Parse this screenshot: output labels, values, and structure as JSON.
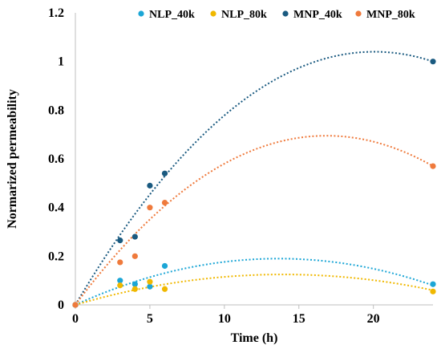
{
  "chart_data": {
    "type": "scatter",
    "xlabel": "Time (h)",
    "ylabel": "Normarized permeability",
    "xlim": [
      0,
      24
    ],
    "ylim": [
      0,
      1.2
    ],
    "xticks": [
      0,
      5,
      10,
      15,
      20
    ],
    "yticks": [
      0,
      0.2,
      0.4,
      0.6,
      0.8,
      1,
      1.2
    ],
    "xtick_labels": [
      "0",
      "5",
      "10",
      "15",
      "20"
    ],
    "ytick_labels": [
      "0",
      "0.2",
      "0.4",
      "0.6",
      "0.8",
      "1",
      "1.2"
    ],
    "grid": false,
    "legend_position": "top",
    "trendline": "polynomial order 2 (dotted)",
    "series": [
      {
        "name": "NLP_40k",
        "color": "#1ca6d6",
        "points": [
          [
            0,
            0
          ],
          [
            3,
            0.1
          ],
          [
            4,
            0.085
          ],
          [
            5,
            0.075
          ],
          [
            6,
            0.16
          ],
          [
            24,
            0.085
          ]
        ],
        "trend": [
          [
            0,
            0
          ],
          [
            13.5,
            0.19
          ],
          [
            24,
            0.08
          ]
        ]
      },
      {
        "name": "NLP_80k",
        "color": "#f0b800",
        "points": [
          [
            0,
            0
          ],
          [
            3,
            0.08
          ],
          [
            4,
            0.065
          ],
          [
            5,
            0.095
          ],
          [
            6,
            0.065
          ],
          [
            24,
            0.055
          ]
        ],
        "trend": [
          [
            0,
            0
          ],
          [
            14,
            0.125
          ],
          [
            24,
            0.06
          ]
        ]
      },
      {
        "name": "MNP_40k",
        "color": "#1a5a80",
        "points": [
          [
            0,
            0
          ],
          [
            3,
            0.265
          ],
          [
            4,
            0.28
          ],
          [
            5,
            0.49
          ],
          [
            6,
            0.54
          ],
          [
            24,
            1.0
          ]
        ],
        "trend": [
          [
            0,
            0
          ],
          [
            20.2,
            1.04
          ],
          [
            24,
            1.0
          ]
        ]
      },
      {
        "name": "MNP_80k",
        "color": "#ef7a3c",
        "points": [
          [
            0,
            0
          ],
          [
            3,
            0.175
          ],
          [
            4,
            0.2
          ],
          [
            5,
            0.4
          ],
          [
            6,
            0.42
          ],
          [
            24,
            0.57
          ]
        ],
        "trend": [
          [
            0,
            0
          ],
          [
            16.9,
            0.695
          ],
          [
            24,
            0.57
          ]
        ]
      }
    ]
  }
}
